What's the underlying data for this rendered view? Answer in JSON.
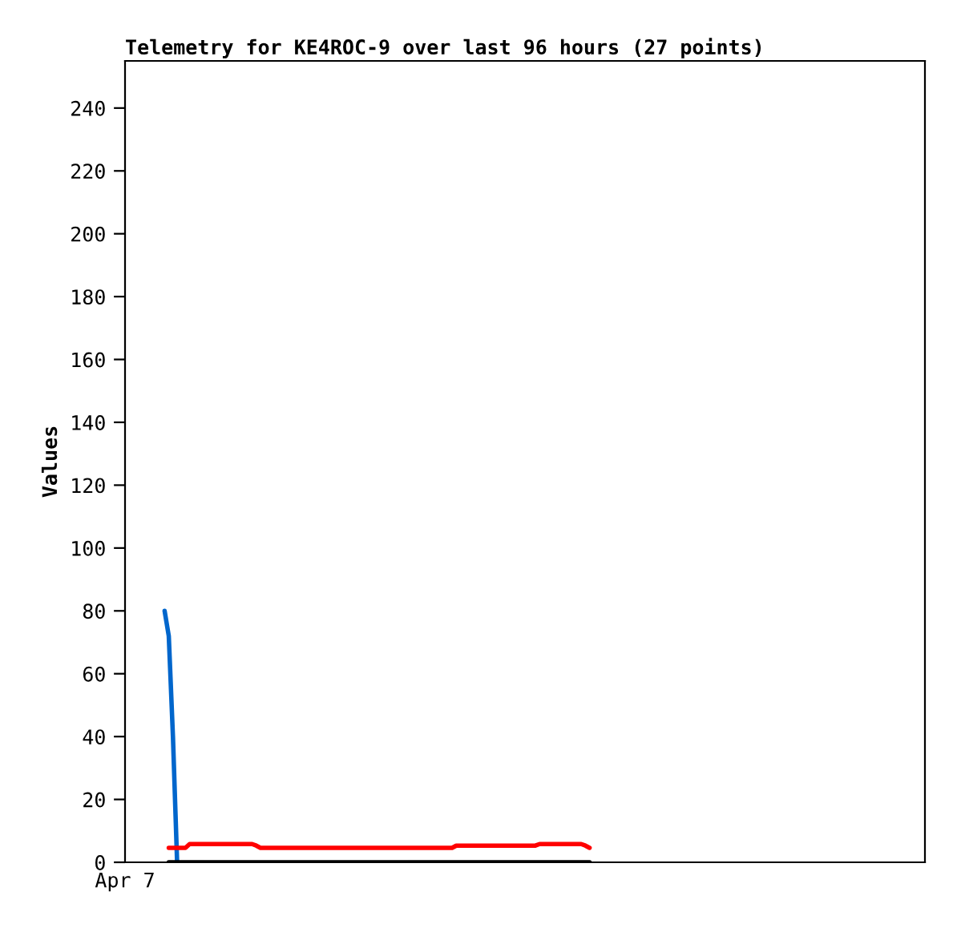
{
  "chart_data": {
    "type": "line",
    "title": "Telemetry for KE4ROC-9 over last 96 hours (27 points)",
    "ylabel": "Values",
    "annotations": [
      "Apr 7"
    ],
    "tick_labels": "y",
    "ylim": [
      0,
      255
    ],
    "yticks": [
      0,
      20,
      40,
      60,
      80,
      100,
      120,
      140,
      160,
      180,
      200,
      220,
      240
    ],
    "grid": false,
    "categories": [
      null,
      null,
      null,
      null,
      null,
      null,
      null,
      null,
      null,
      null,
      null,
      null,
      null,
      null,
      null,
      null,
      null,
      null,
      null,
      null,
      null,
      null,
      null,
      null,
      null,
      null,
      null,
      null,
      null,
      null,
      null,
      null,
      null,
      null,
      null,
      null,
      null,
      null,
      null,
      null,
      null,
      null,
      null,
      null,
      null,
      null,
      null,
      null,
      null,
      null,
      null,
      null,
      null,
      null,
      null,
      null,
      null,
      null,
      null,
      null,
      null,
      null,
      null,
      null,
      null,
      null,
      null,
      null,
      null,
      null,
      null,
      null,
      null,
      null,
      null,
      null,
      null,
      null,
      null,
      null,
      null,
      null,
      null,
      null,
      null,
      null,
      null,
      null,
      null,
      null,
      null,
      null,
      null,
      null,
      null,
      null,
      null,
      null,
      null,
      null,
      null,
      null,
      null,
      null,
      null,
      null,
      null,
      null,
      null,
      null,
      null,
      null,
      null,
      null,
      null,
      null,
      null,
      null,
      null,
      null,
      null,
      null,
      null,
      null,
      null,
      null,
      null,
      null,
      null,
      null,
      null,
      null,
      null,
      null,
      null,
      null,
      null,
      null,
      null,
      null,
      null,
      null,
      null,
      null,
      null,
      null,
      null,
      null,
      null,
      null,
      null,
      null,
      null,
      null,
      null,
      null,
      null,
      null,
      null,
      null,
      null,
      null,
      null,
      null,
      null,
      null,
      null,
      null,
      null,
      null,
      null,
      null,
      null,
      null,
      null,
      null,
      null,
      null,
      null,
      null,
      null,
      null,
      null,
      null,
      null,
      null,
      null,
      null,
      null,
      null,
      null,
      null
    ],
    "series": [
      {
        "color": "#0066cc",
        "values": [
          null,
          null,
          null,
          null,
          null,
          null,
          null,
          null,
          null,
          80,
          72,
          40,
          0,
          null,
          null,
          null,
          null,
          null,
          null,
          null,
          null,
          null,
          null,
          null,
          null,
          null,
          null,
          null,
          null,
          null,
          null,
          null,
          null,
          null,
          null,
          null,
          null,
          null,
          null,
          null,
          null,
          null,
          null,
          null,
          null,
          null,
          null,
          null,
          null,
          null,
          null,
          null,
          null,
          null,
          null,
          null,
          null,
          null,
          null,
          null,
          null,
          null,
          null,
          null,
          null,
          null,
          null,
          null,
          null,
          null,
          null,
          null,
          null,
          null,
          null,
          null,
          null,
          null,
          null,
          null,
          null,
          null,
          null,
          null,
          null,
          null,
          null,
          null,
          null,
          null,
          null,
          null,
          null,
          null,
          null,
          null,
          null,
          null,
          null,
          null,
          null,
          null,
          null,
          null,
          null,
          null,
          null,
          null,
          null,
          null,
          null,
          null,
          null,
          null,
          null,
          null,
          null,
          null,
          null,
          null,
          null,
          null,
          null,
          null,
          null,
          null,
          null,
          null,
          null,
          null,
          null,
          null,
          null,
          null,
          null,
          null,
          null,
          null,
          null,
          null,
          null,
          null,
          null,
          null,
          null,
          null,
          null,
          null,
          null,
          null,
          null,
          null,
          null,
          null,
          null,
          null,
          null,
          null,
          null,
          null,
          null,
          null,
          null,
          null,
          null,
          null,
          null,
          null,
          null,
          null,
          null,
          null,
          null,
          null,
          null,
          null,
          null,
          null,
          null,
          null,
          null,
          null,
          null,
          null,
          null,
          null,
          null,
          null,
          null,
          null,
          null,
          null
        ]
      },
      {
        "color": "#ff0000",
        "values": [
          null,
          null,
          null,
          null,
          null,
          null,
          null,
          null,
          null,
          null,
          4.6,
          4.6,
          4.6,
          4.6,
          4.6,
          5.8,
          5.8,
          5.8,
          5.8,
          5.8,
          5.8,
          5.8,
          5.8,
          5.8,
          5.8,
          5.8,
          5.8,
          5.8,
          5.8,
          5.8,
          5.8,
          5.3,
          4.6,
          4.6,
          4.6,
          4.6,
          4.6,
          4.6,
          4.6,
          4.6,
          4.6,
          4.6,
          4.6,
          4.6,
          4.6,
          4.6,
          4.6,
          4.6,
          4.6,
          4.6,
          4.6,
          4.6,
          4.6,
          4.6,
          4.6,
          4.6,
          4.6,
          4.6,
          4.6,
          4.6,
          4.6,
          4.6,
          4.6,
          4.6,
          4.6,
          4.6,
          4.6,
          4.6,
          4.6,
          4.6,
          4.6,
          4.6,
          4.6,
          4.6,
          4.6,
          4.6,
          4.6,
          4.6,
          4.6,
          5.3,
          5.3,
          5.3,
          5.3,
          5.3,
          5.3,
          5.3,
          5.3,
          5.3,
          5.3,
          5.3,
          5.3,
          5.3,
          5.3,
          5.3,
          5.3,
          5.3,
          5.3,
          5.3,
          5.3,
          5.8,
          5.8,
          5.8,
          5.8,
          5.8,
          5.8,
          5.8,
          5.8,
          5.8,
          5.8,
          5.8,
          5.3,
          4.6,
          null,
          null,
          null,
          null,
          null,
          null,
          null,
          null,
          null,
          null,
          null,
          null,
          null,
          null,
          null,
          null,
          null,
          null,
          null,
          null,
          null,
          null,
          null,
          null,
          null,
          null,
          null,
          null,
          null,
          null,
          null,
          null,
          null,
          null,
          null,
          null,
          null,
          null,
          null,
          null,
          null,
          null,
          null,
          null,
          null,
          null,
          null,
          null,
          null,
          null,
          null,
          null,
          null,
          null,
          null,
          null,
          null,
          null,
          null,
          null,
          null,
          null,
          null,
          null,
          null,
          null,
          null,
          null,
          null,
          null,
          null,
          null,
          null,
          null,
          null,
          null,
          null,
          null,
          null,
          null
        ]
      },
      {
        "color": "#000000",
        "values": [
          null,
          null,
          null,
          null,
          null,
          null,
          null,
          null,
          null,
          null,
          0,
          0,
          0,
          0,
          0,
          0,
          0,
          0,
          0,
          0,
          0,
          0,
          0,
          0,
          0,
          0,
          0,
          0,
          0,
          0,
          0,
          0,
          0,
          0,
          0,
          0,
          0,
          0,
          0,
          0,
          0,
          0,
          0,
          0,
          0,
          0,
          0,
          0,
          0,
          0,
          0,
          0,
          0,
          0,
          0,
          0,
          0,
          0,
          0,
          0,
          0,
          0,
          0,
          0,
          0,
          0,
          0,
          0,
          0,
          0,
          0,
          0,
          0,
          0,
          0,
          0,
          0,
          0,
          0,
          0,
          0,
          0,
          0,
          0,
          0,
          0,
          0,
          0,
          0,
          0,
          0,
          0,
          0,
          0,
          0,
          0,
          0,
          0,
          0,
          0,
          0,
          0,
          0,
          0,
          0,
          0,
          0,
          0,
          0,
          0,
          0,
          0,
          null,
          null,
          null,
          null,
          null,
          null,
          null,
          null,
          null,
          null,
          null,
          null,
          null,
          null,
          null,
          null,
          null,
          null,
          null,
          null,
          null,
          null,
          null,
          null,
          null,
          null,
          null,
          null,
          null,
          null,
          null,
          null,
          null,
          null,
          null,
          null,
          null,
          null,
          null,
          null,
          null,
          null,
          null,
          null,
          null,
          null,
          null,
          null,
          null,
          null,
          null,
          null,
          null,
          null,
          null,
          null,
          null,
          null,
          null,
          null,
          null,
          null,
          null,
          null,
          null,
          null,
          null,
          null,
          null,
          null,
          null,
          null,
          null,
          null,
          null,
          null,
          null,
          null,
          null,
          null
        ]
      }
    ]
  }
}
